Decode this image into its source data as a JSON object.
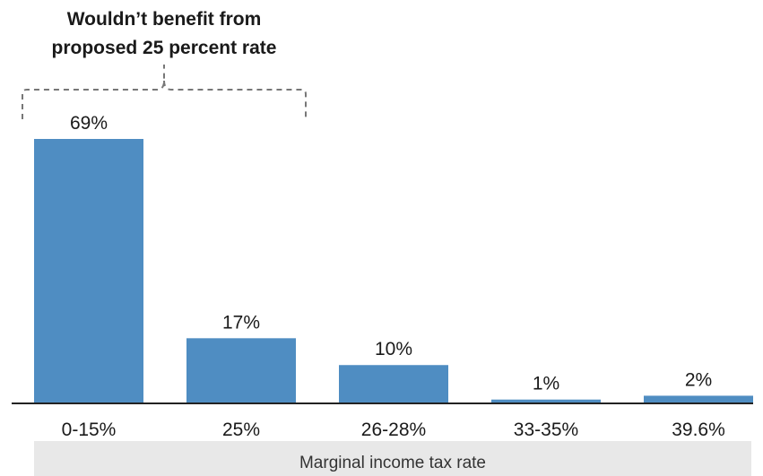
{
  "chart_data": {
    "type": "bar",
    "categories": [
      "0-15%",
      "25%",
      "26-28%",
      "33-35%",
      "39.6%"
    ],
    "values": [
      69,
      17,
      10,
      1,
      2
    ],
    "value_labels": [
      "69%",
      "17%",
      "10%",
      "1%",
      "2%"
    ],
    "xlabel": "Marginal income tax rate",
    "ylabel": "",
    "ylim": [
      0,
      70
    ],
    "grid": false,
    "bar_color": "#4f8dc2",
    "annotation": {
      "line1": "Wouldn’t benefit from",
      "line2": "proposed 25 percent rate",
      "spans_categories": [
        "0-15%",
        "25%"
      ]
    }
  }
}
